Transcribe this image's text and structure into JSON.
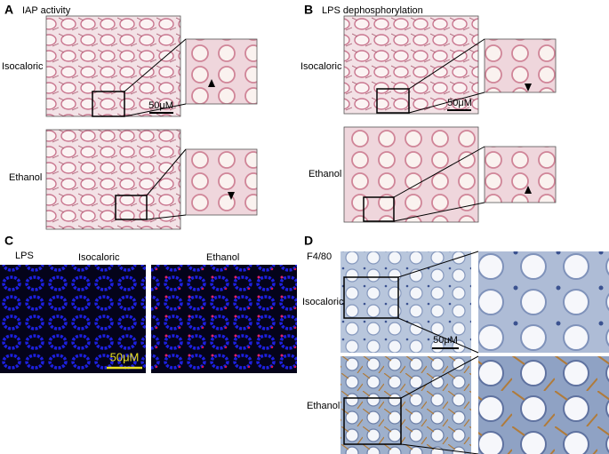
{
  "panels": [
    {
      "letter": "A",
      "title": "IAP activity",
      "rows": [
        {
          "label": "Isocaloric",
          "scale": "50μM"
        },
        {
          "label": "Ethanol"
        }
      ]
    },
    {
      "letter": "B",
      "title": "LPS dephosphorylation",
      "rows": [
        {
          "label": "Isocaloric",
          "scale": "50μM"
        },
        {
          "label": "Ethanol"
        }
      ]
    },
    {
      "letter": "C",
      "title": "LPS",
      "columns": [
        "Isocaloric",
        "Ethanol"
      ],
      "scale": "50μM"
    },
    {
      "letter": "D",
      "title": "F4/80",
      "rows": [
        {
          "label": "Isocaloric",
          "scale": "50μM"
        },
        {
          "label": "Ethanol"
        }
      ]
    }
  ]
}
